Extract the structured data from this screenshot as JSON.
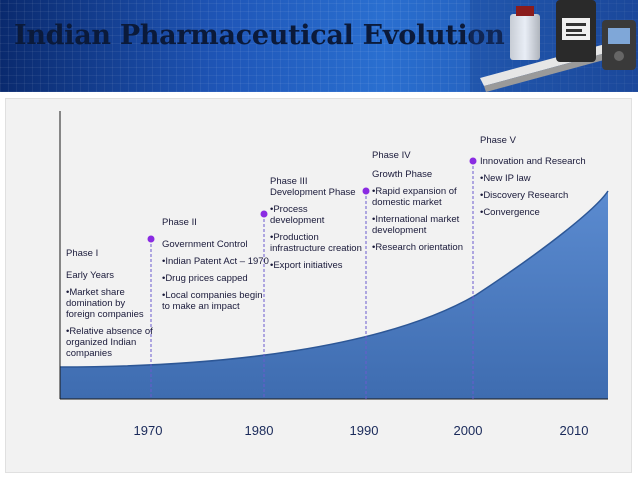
{
  "title": "Indian Pharmaceutical Evolution",
  "phases": [
    {
      "name": "Phase I",
      "heading": "Early Years",
      "bullets": [
        "•Market share domination by foreign companies",
        "•Relative absence of organized Indian companies"
      ]
    },
    {
      "name": "Phase II",
      "heading": "Government Control",
      "bullets": [
        "•Indian Patent Act – 1970",
        "•Drug prices capped",
        "•Local companies begin to make an impact"
      ]
    },
    {
      "name": "Phase III",
      "heading": "Development Phase",
      "bullets": [
        "•Process development",
        "•Production infrastructure creation",
        "•Export initiatives"
      ]
    },
    {
      "name": "Phase IV",
      "heading": "Growth Phase",
      "bullets": [
        "•Rapid expansion of domestic market",
        "•International market development",
        "•Research orientation"
      ]
    },
    {
      "name": "Phase V",
      "heading": "Innovation and Research",
      "bullets": [
        "•New IP law",
        "•Discovery Research",
        "•Convergence"
      ]
    }
  ],
  "years": [
    "1970",
    "1980",
    "1990",
    "2000",
    "2010"
  ],
  "colors": {
    "header_start": "#0a2a6e",
    "header_end": "#2a6fd0",
    "curve_fill": "#4f7fc2",
    "marker": "#8a2be2",
    "title": "#0b1a3a"
  }
}
